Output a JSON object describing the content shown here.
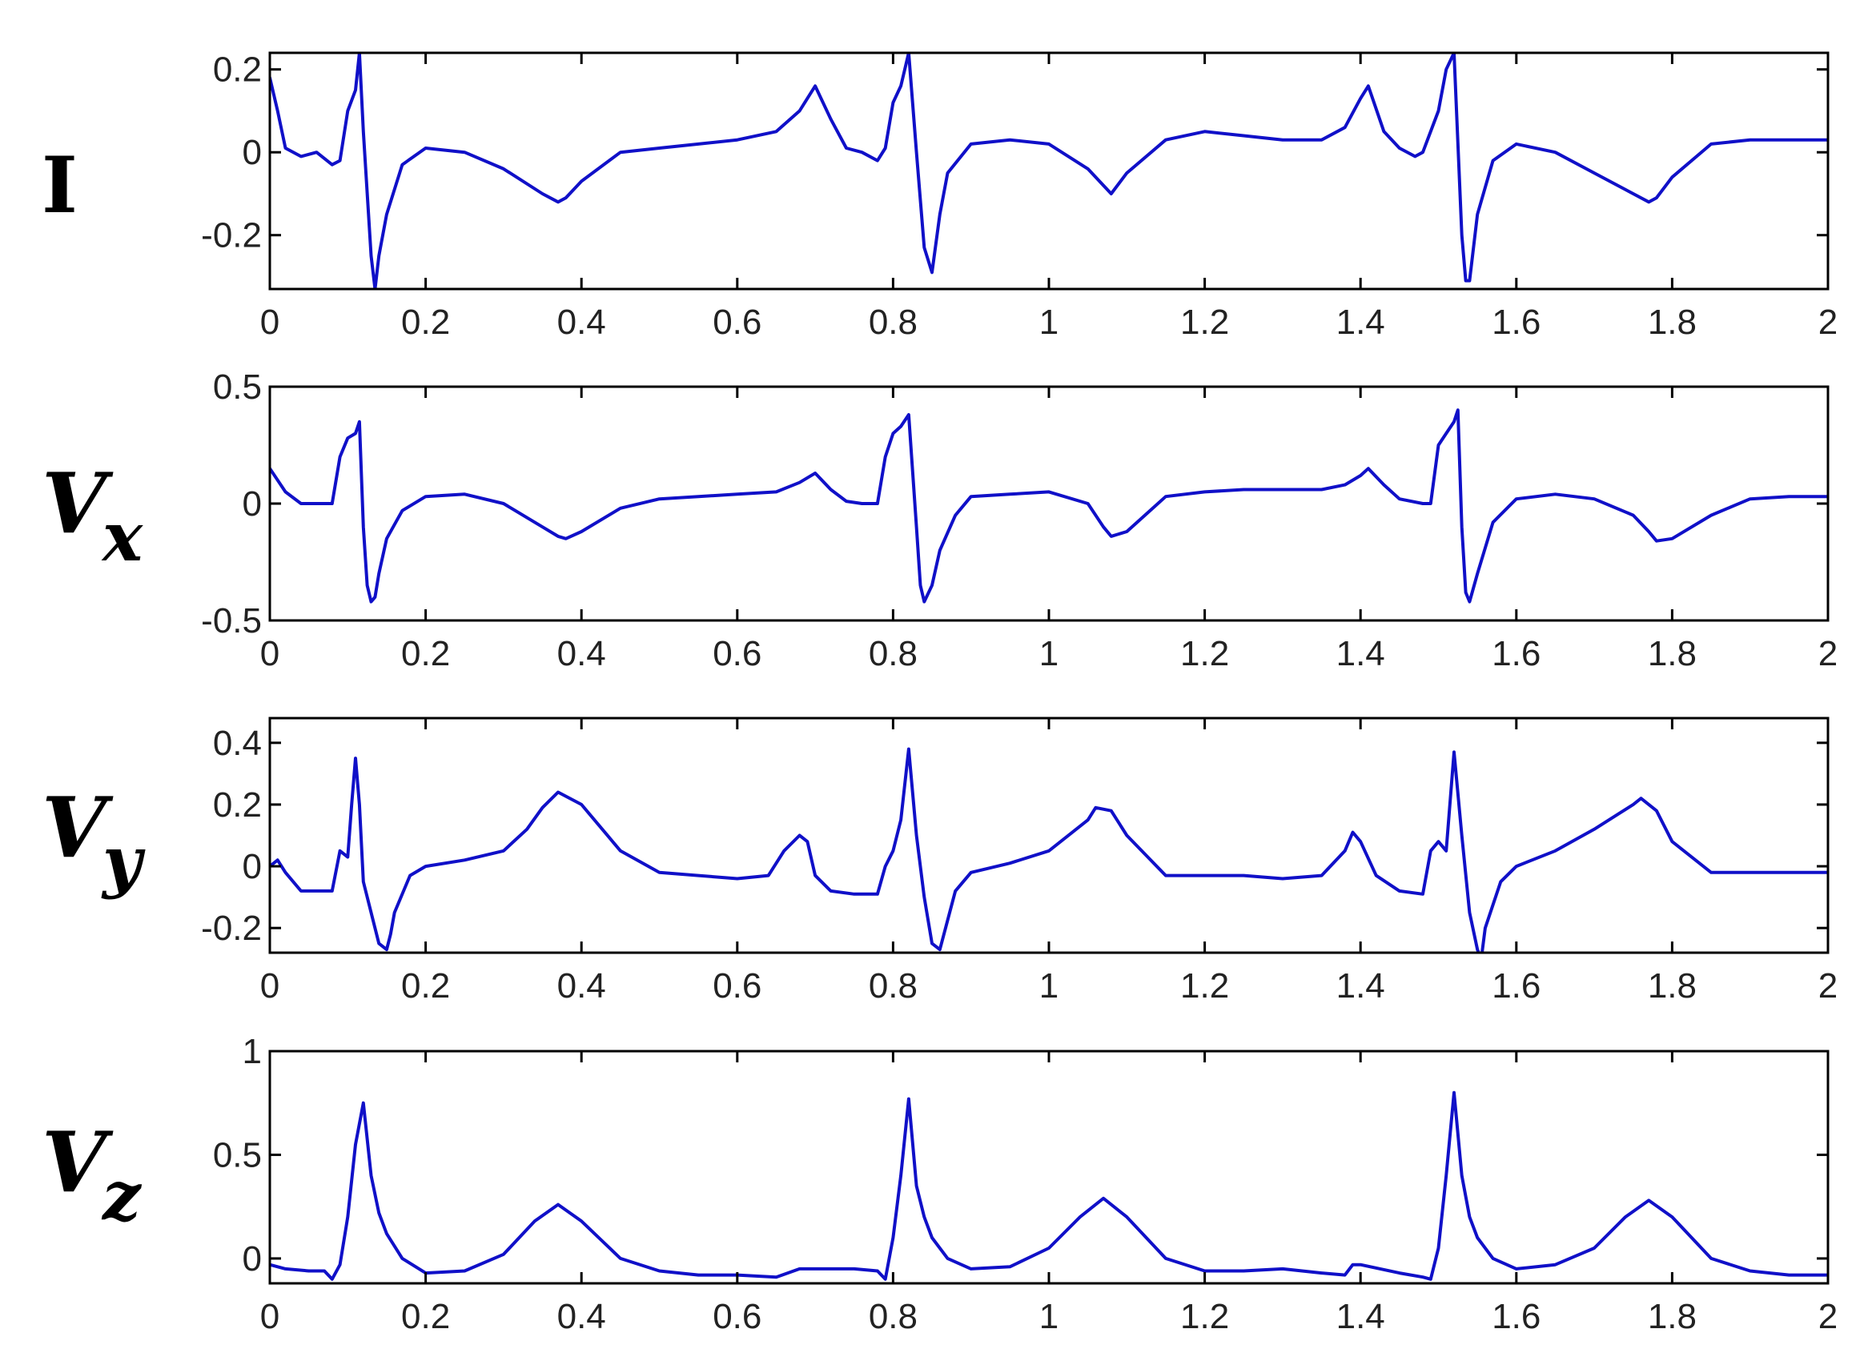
{
  "chart_data": [
    {
      "type": "line",
      "lead_label": {
        "main": "I",
        "sub": ""
      },
      "xlim": [
        0,
        2
      ],
      "ylim": [
        -0.33,
        0.24
      ],
      "x_ticks": [
        0,
        0.2,
        0.4,
        0.6,
        0.8,
        1,
        1.2,
        1.4,
        1.6,
        1.8,
        2
      ],
      "x_tick_labels": [
        "0",
        "0.2",
        "0.4",
        "0.6",
        "0.8",
        "1",
        "1.2",
        "1.4",
        "1.6",
        "1.8",
        "2"
      ],
      "y_ticks": [
        -0.2,
        0,
        0.2
      ],
      "y_tick_labels": [
        "-0.2",
        "0",
        "0.2"
      ],
      "series": [
        {
          "color": "#1010c8",
          "x": [
            0,
            0.01,
            0.02,
            0.04,
            0.06,
            0.08,
            0.09,
            0.1,
            0.11,
            0.115,
            0.12,
            0.13,
            0.135,
            0.14,
            0.15,
            0.17,
            0.2,
            0.25,
            0.3,
            0.35,
            0.37,
            0.38,
            0.4,
            0.45,
            0.5,
            0.55,
            0.6,
            0.65,
            0.68,
            0.7,
            0.72,
            0.74,
            0.76,
            0.78,
            0.79,
            0.8,
            0.81,
            0.82,
            0.83,
            0.84,
            0.85,
            0.86,
            0.87,
            0.9,
            0.95,
            1.0,
            1.05,
            1.07,
            1.08,
            1.1,
            1.15,
            1.2,
            1.25,
            1.3,
            1.35,
            1.38,
            1.4,
            1.41,
            1.43,
            1.45,
            1.47,
            1.48,
            1.5,
            1.51,
            1.52,
            1.53,
            1.535,
            1.54,
            1.55,
            1.57,
            1.6,
            1.65,
            1.7,
            1.75,
            1.77,
            1.78,
            1.8,
            1.85,
            1.9,
            1.95,
            2.0
          ],
          "y": [
            0.18,
            0.1,
            0.01,
            -0.01,
            0.0,
            -0.03,
            -0.02,
            0.1,
            0.15,
            0.24,
            0.05,
            -0.25,
            -0.33,
            -0.25,
            -0.15,
            -0.03,
            0.01,
            0.0,
            -0.04,
            -0.1,
            -0.12,
            -0.11,
            -0.07,
            0.0,
            0.01,
            0.02,
            0.03,
            0.05,
            0.1,
            0.16,
            0.08,
            0.01,
            0.0,
            -0.02,
            0.01,
            0.12,
            0.16,
            0.24,
            0.0,
            -0.23,
            -0.29,
            -0.15,
            -0.05,
            0.02,
            0.03,
            0.02,
            -0.04,
            -0.08,
            -0.1,
            -0.05,
            0.03,
            0.05,
            0.04,
            0.03,
            0.03,
            0.06,
            0.13,
            0.16,
            0.05,
            0.01,
            -0.01,
            0.0,
            0.1,
            0.2,
            0.24,
            -0.2,
            -0.31,
            -0.31,
            -0.15,
            -0.02,
            0.02,
            0.0,
            -0.05,
            -0.1,
            -0.12,
            -0.11,
            -0.06,
            0.02,
            0.03,
            0.03,
            0.03
          ]
        }
      ]
    },
    {
      "type": "line",
      "lead_label": {
        "main": "V",
        "sub": "x"
      },
      "xlim": [
        0,
        2
      ],
      "ylim": [
        -0.5,
        0.5
      ],
      "x_ticks": [
        0,
        0.2,
        0.4,
        0.6,
        0.8,
        1,
        1.2,
        1.4,
        1.6,
        1.8,
        2
      ],
      "x_tick_labels": [
        "0",
        "0.2",
        "0.4",
        "0.6",
        "0.8",
        "1",
        "1.2",
        "1.4",
        "1.6",
        "1.8",
        "2"
      ],
      "y_ticks": [
        -0.5,
        0,
        0.5
      ],
      "y_tick_labels": [
        "-0.5",
        "0",
        "0.5"
      ],
      "series": [
        {
          "color": "#1010c8",
          "x": [
            0,
            0.02,
            0.04,
            0.06,
            0.08,
            0.09,
            0.1,
            0.11,
            0.115,
            0.12,
            0.125,
            0.13,
            0.135,
            0.14,
            0.15,
            0.17,
            0.2,
            0.25,
            0.3,
            0.35,
            0.37,
            0.38,
            0.4,
            0.45,
            0.5,
            0.55,
            0.6,
            0.65,
            0.68,
            0.7,
            0.72,
            0.74,
            0.76,
            0.78,
            0.79,
            0.8,
            0.81,
            0.82,
            0.83,
            0.835,
            0.84,
            0.85,
            0.86,
            0.88,
            0.9,
            0.95,
            1.0,
            1.05,
            1.07,
            1.08,
            1.1,
            1.15,
            1.2,
            1.25,
            1.3,
            1.35,
            1.38,
            1.4,
            1.41,
            1.43,
            1.45,
            1.48,
            1.49,
            1.5,
            1.51,
            1.52,
            1.525,
            1.53,
            1.535,
            1.54,
            1.55,
            1.57,
            1.6,
            1.65,
            1.7,
            1.75,
            1.77,
            1.78,
            1.8,
            1.85,
            1.9,
            1.95,
            2.0
          ],
          "y": [
            0.15,
            0.05,
            0.0,
            0.0,
            0.0,
            0.2,
            0.28,
            0.3,
            0.35,
            -0.1,
            -0.35,
            -0.42,
            -0.4,
            -0.3,
            -0.15,
            -0.03,
            0.03,
            0.04,
            0.0,
            -0.1,
            -0.14,
            -0.15,
            -0.12,
            -0.02,
            0.02,
            0.03,
            0.04,
            0.05,
            0.09,
            0.13,
            0.06,
            0.01,
            0.0,
            0.0,
            0.2,
            0.3,
            0.33,
            0.38,
            -0.1,
            -0.35,
            -0.42,
            -0.35,
            -0.2,
            -0.05,
            0.03,
            0.04,
            0.05,
            0.0,
            -0.1,
            -0.14,
            -0.12,
            0.03,
            0.05,
            0.06,
            0.06,
            0.06,
            0.08,
            0.12,
            0.15,
            0.08,
            0.02,
            0.0,
            0.0,
            0.25,
            0.3,
            0.35,
            0.4,
            -0.1,
            -0.38,
            -0.42,
            -0.3,
            -0.08,
            0.02,
            0.04,
            0.02,
            -0.05,
            -0.12,
            -0.16,
            -0.15,
            -0.05,
            0.02,
            0.03,
            0.03
          ]
        }
      ]
    },
    {
      "type": "line",
      "lead_label": {
        "main": "V",
        "sub": "y"
      },
      "xlim": [
        0,
        2
      ],
      "ylim": [
        -0.28,
        0.48
      ],
      "x_ticks": [
        0,
        0.2,
        0.4,
        0.6,
        0.8,
        1,
        1.2,
        1.4,
        1.6,
        1.8,
        2
      ],
      "x_tick_labels": [
        "0",
        "0.2",
        "0.4",
        "0.6",
        "0.8",
        "1",
        "1.2",
        "1.4",
        "1.6",
        "1.8",
        "2"
      ],
      "y_ticks": [
        -0.2,
        0,
        0.2,
        0.4
      ],
      "y_tick_labels": [
        "-0.2",
        "0",
        "0.2",
        "0.4"
      ],
      "series": [
        {
          "color": "#1010c8",
          "x": [
            0,
            0.01,
            0.02,
            0.04,
            0.06,
            0.08,
            0.09,
            0.1,
            0.105,
            0.11,
            0.115,
            0.12,
            0.13,
            0.14,
            0.15,
            0.155,
            0.16,
            0.18,
            0.2,
            0.25,
            0.3,
            0.33,
            0.35,
            0.37,
            0.4,
            0.45,
            0.5,
            0.55,
            0.6,
            0.64,
            0.66,
            0.68,
            0.69,
            0.7,
            0.72,
            0.75,
            0.78,
            0.79,
            0.8,
            0.81,
            0.82,
            0.83,
            0.84,
            0.85,
            0.86,
            0.88,
            0.9,
            0.95,
            1.0,
            1.05,
            1.06,
            1.08,
            1.1,
            1.15,
            1.2,
            1.25,
            1.3,
            1.35,
            1.38,
            1.39,
            1.4,
            1.42,
            1.45,
            1.48,
            1.49,
            1.5,
            1.51,
            1.52,
            1.53,
            1.54,
            1.55,
            1.555,
            1.56,
            1.58,
            1.6,
            1.65,
            1.7,
            1.75,
            1.76,
            1.78,
            1.8,
            1.85,
            1.9,
            1.95,
            2.0
          ],
          "y": [
            0.0,
            0.02,
            -0.02,
            -0.08,
            -0.08,
            -0.08,
            0.05,
            0.03,
            0.2,
            0.35,
            0.2,
            -0.05,
            -0.15,
            -0.25,
            -0.27,
            -0.22,
            -0.15,
            -0.03,
            0.0,
            0.02,
            0.05,
            0.12,
            0.19,
            0.24,
            0.2,
            0.05,
            -0.02,
            -0.03,
            -0.04,
            -0.03,
            0.05,
            0.1,
            0.08,
            -0.03,
            -0.08,
            -0.09,
            -0.09,
            0.0,
            0.05,
            0.15,
            0.38,
            0.1,
            -0.1,
            -0.25,
            -0.27,
            -0.08,
            -0.02,
            0.01,
            0.05,
            0.15,
            0.19,
            0.18,
            0.1,
            -0.03,
            -0.03,
            -0.03,
            -0.04,
            -0.03,
            0.05,
            0.11,
            0.08,
            -0.03,
            -0.08,
            -0.09,
            0.05,
            0.08,
            0.05,
            0.37,
            0.1,
            -0.15,
            -0.27,
            -0.3,
            -0.2,
            -0.05,
            0.0,
            0.05,
            0.12,
            0.2,
            0.22,
            0.18,
            0.08,
            -0.02,
            -0.02,
            -0.02,
            -0.02
          ]
        }
      ]
    },
    {
      "type": "line",
      "lead_label": {
        "main": "V",
        "sub": "z"
      },
      "xlim": [
        0,
        2
      ],
      "ylim": [
        -0.12,
        1.0
      ],
      "x_ticks": [
        0,
        0.2,
        0.4,
        0.6,
        0.8,
        1,
        1.2,
        1.4,
        1.6,
        1.8,
        2
      ],
      "x_tick_labels": [
        "0",
        "0.2",
        "0.4",
        "0.6",
        "0.8",
        "1",
        "1.2",
        "1.4",
        "1.6",
        "1.8",
        "2"
      ],
      "y_ticks": [
        0,
        0.5,
        1
      ],
      "y_tick_labels": [
        "0",
        "0.5",
        "1"
      ],
      "series": [
        {
          "color": "#1010c8",
          "x": [
            0,
            0.02,
            0.05,
            0.07,
            0.08,
            0.09,
            0.1,
            0.11,
            0.12,
            0.13,
            0.14,
            0.15,
            0.17,
            0.2,
            0.25,
            0.3,
            0.34,
            0.37,
            0.4,
            0.45,
            0.5,
            0.55,
            0.6,
            0.65,
            0.68,
            0.7,
            0.75,
            0.78,
            0.79,
            0.8,
            0.81,
            0.82,
            0.83,
            0.84,
            0.85,
            0.87,
            0.9,
            0.95,
            1.0,
            1.04,
            1.07,
            1.1,
            1.15,
            1.2,
            1.25,
            1.3,
            1.35,
            1.38,
            1.39,
            1.4,
            1.45,
            1.48,
            1.49,
            1.5,
            1.51,
            1.52,
            1.53,
            1.54,
            1.55,
            1.57,
            1.6,
            1.65,
            1.7,
            1.74,
            1.77,
            1.8,
            1.85,
            1.9,
            1.95,
            2.0
          ],
          "y": [
            -0.03,
            -0.05,
            -0.06,
            -0.06,
            -0.1,
            -0.03,
            0.2,
            0.55,
            0.75,
            0.4,
            0.22,
            0.12,
            0.0,
            -0.07,
            -0.06,
            0.02,
            0.18,
            0.26,
            0.18,
            0.0,
            -0.06,
            -0.08,
            -0.08,
            -0.09,
            -0.05,
            -0.05,
            -0.05,
            -0.06,
            -0.1,
            0.1,
            0.4,
            0.77,
            0.35,
            0.2,
            0.1,
            0.0,
            -0.05,
            -0.04,
            0.05,
            0.2,
            0.29,
            0.2,
            0.0,
            -0.06,
            -0.06,
            -0.05,
            -0.07,
            -0.08,
            -0.03,
            -0.03,
            -0.07,
            -0.09,
            -0.1,
            0.05,
            0.4,
            0.8,
            0.4,
            0.2,
            0.1,
            0.0,
            -0.05,
            -0.03,
            0.05,
            0.2,
            0.28,
            0.2,
            0.0,
            -0.06,
            -0.08,
            -0.08
          ]
        }
      ]
    }
  ]
}
